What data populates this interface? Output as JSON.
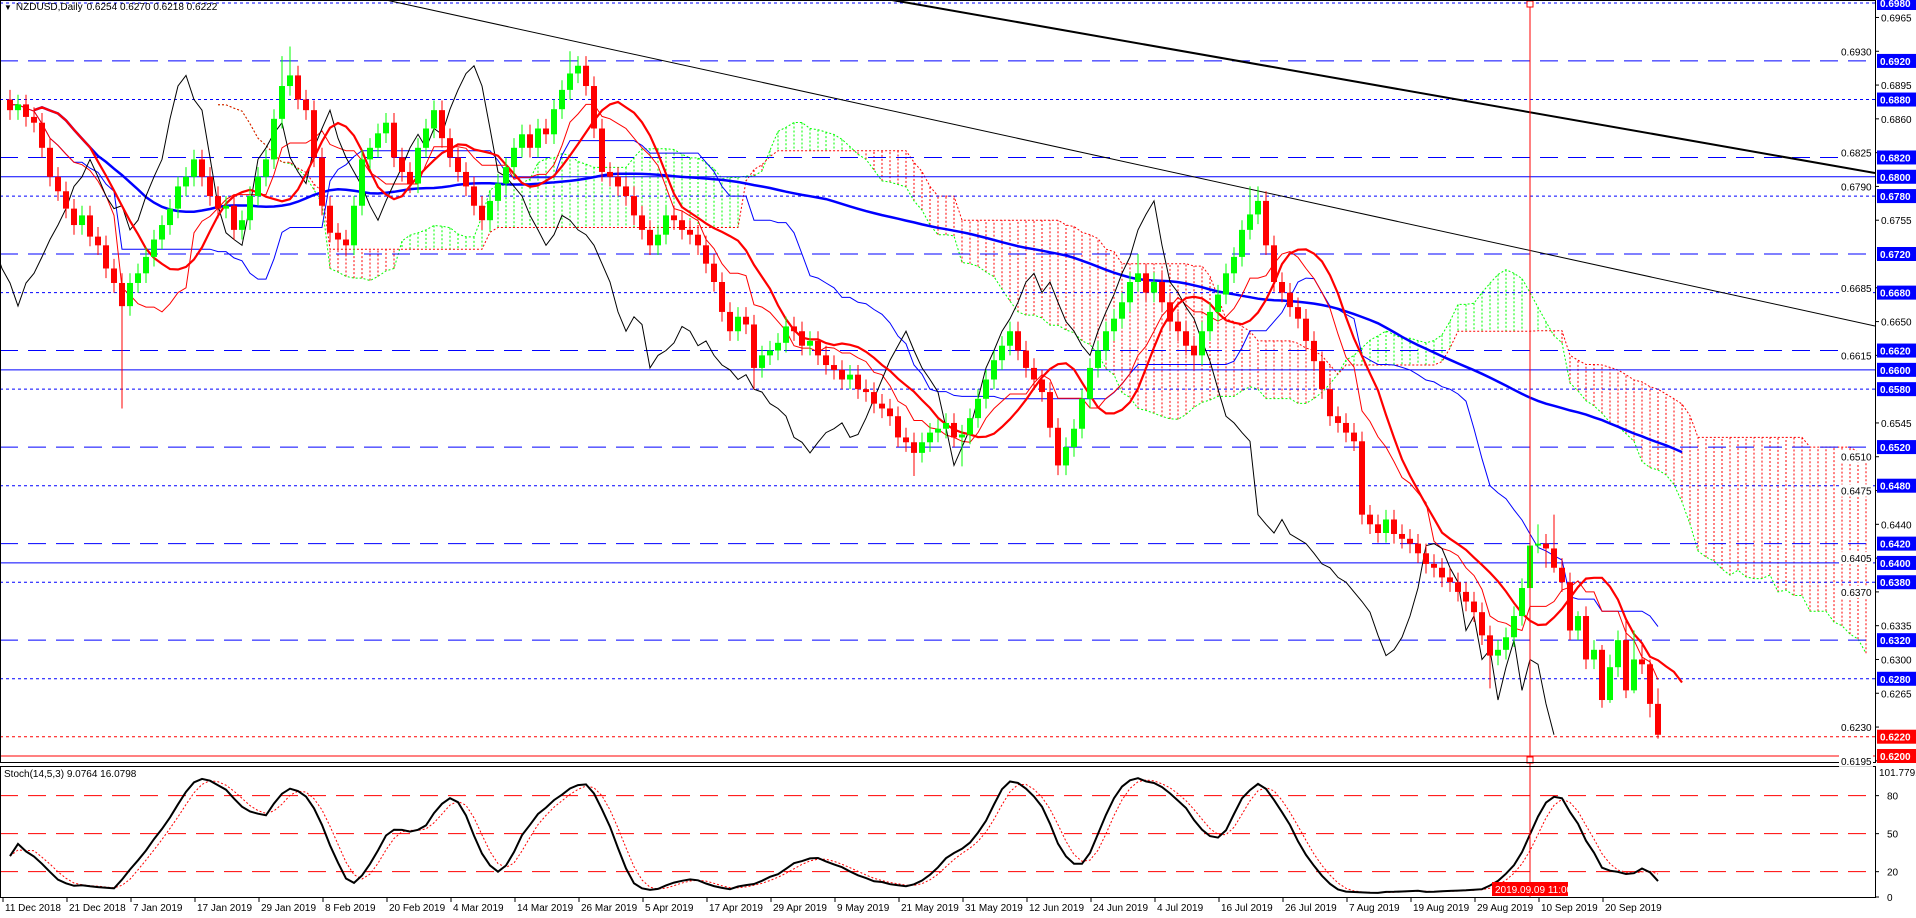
{
  "header": {
    "symbol": "NZDUSD,Daily",
    "ohlc": "0.6254 0.6270 0.6218 0.6222",
    "menu_icon": "triangle-down-icon"
  },
  "stoch_panel": {
    "label": "Stoch(14,5,3) 9.0764 16.0798",
    "max_label": "101.7791",
    "levels": [
      80,
      50,
      20
    ],
    "axis_labels": [
      "80",
      "50",
      "20",
      "0"
    ]
  },
  "crosshair": {
    "label": "2019.09.09 11:00",
    "color": "#ff0000"
  },
  "colors": {
    "bull": "#00ff00",
    "bear": "#ff0000",
    "level": "#0000ff",
    "bid": "#ff0000",
    "cloud_up": "#00ff00",
    "cloud_down": "#ff0000",
    "ma_fast": "#ff0000",
    "ma_slow": "#0000ff",
    "kijun": "#0000ff",
    "tenkan": "#ff0000",
    "chikou": "#000000",
    "trendline": "#000000"
  },
  "price_axis": {
    "ticks": [
      "0.6965",
      "0.6930",
      "0.6895",
      "0.6860",
      "0.6825",
      "0.6790",
      "0.6755",
      "0.6685",
      "0.6650",
      "0.6615",
      "0.6545",
      "0.6510",
      "0.6475",
      "0.6440",
      "0.6405",
      "0.6370",
      "0.6335",
      "0.6300",
      "0.6265",
      "0.6230",
      "0.6195"
    ],
    "levels": [
      {
        "price": "0.6980",
        "style": "dotted",
        "box": "blue"
      },
      {
        "price": "0.6920",
        "style": "dashed",
        "box": "blue"
      },
      {
        "price": "0.6880",
        "style": "dotted",
        "box": "blue"
      },
      {
        "price": "0.6820",
        "style": "dashed",
        "box": "blue"
      },
      {
        "price": "0.6800",
        "style": "solid",
        "box": "blue"
      },
      {
        "price": "0.6780",
        "style": "dotted",
        "box": "blue"
      },
      {
        "price": "0.6720",
        "style": "dashed",
        "box": "blue"
      },
      {
        "price": "0.6680",
        "style": "dotted",
        "box": "blue"
      },
      {
        "price": "0.6620",
        "style": "dashed",
        "box": "blue"
      },
      {
        "price": "0.6600",
        "style": "solid",
        "box": "blue"
      },
      {
        "price": "0.6580",
        "style": "dotted",
        "box": "blue"
      },
      {
        "price": "0.6520",
        "style": "dashed",
        "box": "blue"
      },
      {
        "price": "0.6480",
        "style": "dotted",
        "box": "blue"
      },
      {
        "price": "0.6420",
        "style": "dashed",
        "box": "blue"
      },
      {
        "price": "0.6400",
        "style": "solid",
        "box": "blue"
      },
      {
        "price": "0.6380",
        "style": "dotted",
        "box": "blue"
      },
      {
        "price": "0.6320",
        "style": "dashed",
        "box": "blue"
      },
      {
        "price": "0.6280",
        "style": "dotted",
        "box": "blue"
      },
      {
        "price": "0.6220",
        "style": "dotted",
        "box": "red"
      },
      {
        "price": "0.6200",
        "style": "solid",
        "box": "red"
      }
    ]
  },
  "time_axis": [
    "11 Dec 2018",
    "21 Dec 2018",
    "7 Jan 2019",
    "17 Jan 2019",
    "29 Jan 2019",
    "8 Feb 2019",
    "20 Feb 2019",
    "4 Mar 2019",
    "14 Mar 2019",
    "26 Mar 2019",
    "5 Apr 2019",
    "17 Apr 2019",
    "29 Apr 2019",
    "9 May 2019",
    "21 May 2019",
    "31 May 2019",
    "12 Jun 2019",
    "24 Jun 2019",
    "4 Jul 2019",
    "16 Jul 2019",
    "26 Jul 2019",
    "7 Aug 2019",
    "19 Aug 2019",
    "29 Aug 2019",
    "10 Sep 2019",
    "20 Sep 2019"
  ],
  "chart_data": {
    "type": "candlestick",
    "symbol": "NZDUSD",
    "timeframe": "Daily",
    "ylim": [
      0.6195,
      0.698
    ],
    "candles_ohlc": [
      [
        0.688,
        0.689,
        0.6859,
        0.6869
      ],
      [
        0.6869,
        0.6885,
        0.6859,
        0.6875
      ],
      [
        0.6875,
        0.6885,
        0.6852,
        0.6862
      ],
      [
        0.6862,
        0.6872,
        0.6846,
        0.6856
      ],
      [
        0.6856,
        0.6866,
        0.682,
        0.683
      ],
      [
        0.683,
        0.684,
        0.679,
        0.68
      ],
      [
        0.68,
        0.681,
        0.6775,
        0.6785
      ],
      [
        0.6785,
        0.6795,
        0.6757,
        0.6767
      ],
      [
        0.6767,
        0.6777,
        0.674,
        0.675
      ],
      [
        0.675,
        0.677,
        0.674,
        0.676
      ],
      [
        0.676,
        0.677,
        0.6728,
        0.6738
      ],
      [
        0.6738,
        0.6748,
        0.6719,
        0.6729
      ],
      [
        0.6729,
        0.6739,
        0.6695,
        0.6705
      ],
      [
        0.6705,
        0.6715,
        0.668,
        0.669
      ],
      [
        0.669,
        0.67,
        0.656,
        0.6666
      ],
      [
        0.6666,
        0.67,
        0.6656,
        0.669
      ],
      [
        0.669,
        0.671,
        0.668,
        0.67
      ],
      [
        0.67,
        0.6727,
        0.669,
        0.6717
      ],
      [
        0.6717,
        0.6745,
        0.6707,
        0.6735
      ],
      [
        0.6735,
        0.676,
        0.6725,
        0.675
      ],
      [
        0.675,
        0.6777,
        0.674,
        0.6767
      ],
      [
        0.6767,
        0.68,
        0.6757,
        0.679
      ],
      [
        0.679,
        0.681,
        0.678,
        0.68
      ],
      [
        0.68,
        0.6828,
        0.679,
        0.6818
      ],
      [
        0.6818,
        0.6828,
        0.679,
        0.68
      ],
      [
        0.68,
        0.681,
        0.677,
        0.678
      ],
      [
        0.678,
        0.679,
        0.6757,
        0.6767
      ],
      [
        0.6767,
        0.678,
        0.6757,
        0.677
      ],
      [
        0.677,
        0.678,
        0.6735,
        0.6745
      ],
      [
        0.6745,
        0.6765,
        0.6735,
        0.6755
      ],
      [
        0.6755,
        0.679,
        0.6745,
        0.678
      ],
      [
        0.678,
        0.681,
        0.677,
        0.68
      ],
      [
        0.68,
        0.6828,
        0.679,
        0.6818
      ],
      [
        0.6818,
        0.687,
        0.6808,
        0.686
      ],
      [
        0.686,
        0.6925,
        0.685,
        0.6894
      ],
      [
        0.6894,
        0.6935,
        0.6884,
        0.6905
      ],
      [
        0.6905,
        0.6915,
        0.687,
        0.688
      ],
      [
        0.688,
        0.689,
        0.6859,
        0.6869
      ],
      [
        0.6869,
        0.6879,
        0.681,
        0.682
      ],
      [
        0.682,
        0.683,
        0.676,
        0.677
      ],
      [
        0.677,
        0.678,
        0.6732,
        0.6742
      ],
      [
        0.6742,
        0.6752,
        0.6725,
        0.6735
      ],
      [
        0.6735,
        0.6745,
        0.6719,
        0.6729
      ],
      [
        0.6729,
        0.678,
        0.6719,
        0.677
      ],
      [
        0.677,
        0.6828,
        0.676,
        0.6818
      ],
      [
        0.6818,
        0.684,
        0.6808,
        0.683
      ],
      [
        0.683,
        0.6855,
        0.682,
        0.6845
      ],
      [
        0.6845,
        0.6866,
        0.6835,
        0.6856
      ],
      [
        0.6856,
        0.6866,
        0.681,
        0.682
      ],
      [
        0.682,
        0.683,
        0.6795,
        0.6805
      ],
      [
        0.6805,
        0.6815,
        0.6783,
        0.6793
      ],
      [
        0.6793,
        0.684,
        0.6783,
        0.683
      ],
      [
        0.683,
        0.686,
        0.682,
        0.685
      ],
      [
        0.685,
        0.6879,
        0.684,
        0.6869
      ],
      [
        0.6869,
        0.6879,
        0.683,
        0.684
      ],
      [
        0.684,
        0.685,
        0.681,
        0.682
      ],
      [
        0.682,
        0.683,
        0.6795,
        0.6805
      ],
      [
        0.6805,
        0.6815,
        0.678,
        0.679
      ],
      [
        0.679,
        0.68,
        0.676,
        0.677
      ],
      [
        0.677,
        0.678,
        0.6745,
        0.6755
      ],
      [
        0.6755,
        0.6785,
        0.6745,
        0.6775
      ],
      [
        0.6775,
        0.6803,
        0.6765,
        0.6793
      ],
      [
        0.6793,
        0.682,
        0.6783,
        0.681
      ],
      [
        0.681,
        0.684,
        0.68,
        0.683
      ],
      [
        0.683,
        0.6854,
        0.682,
        0.6844
      ],
      [
        0.6844,
        0.6854,
        0.682,
        0.683
      ],
      [
        0.683,
        0.686,
        0.682,
        0.685
      ],
      [
        0.685,
        0.686,
        0.6834,
        0.6844
      ],
      [
        0.6844,
        0.688,
        0.6834,
        0.687
      ],
      [
        0.687,
        0.69,
        0.686,
        0.689
      ],
      [
        0.689,
        0.693,
        0.688,
        0.6907
      ],
      [
        0.6907,
        0.6925,
        0.6897,
        0.6915
      ],
      [
        0.6915,
        0.6925,
        0.6884,
        0.6894
      ],
      [
        0.6894,
        0.6904,
        0.684,
        0.685
      ],
      [
        0.685,
        0.686,
        0.6795,
        0.6805
      ],
      [
        0.6805,
        0.6815,
        0.679,
        0.68
      ],
      [
        0.68,
        0.681,
        0.678,
        0.679
      ],
      [
        0.679,
        0.68,
        0.677,
        0.678
      ],
      [
        0.678,
        0.679,
        0.675,
        0.676
      ],
      [
        0.676,
        0.677,
        0.6735,
        0.6745
      ],
      [
        0.6745,
        0.6755,
        0.6719,
        0.6729
      ],
      [
        0.6729,
        0.675,
        0.6719,
        0.674
      ],
      [
        0.674,
        0.677,
        0.673,
        0.676
      ],
      [
        0.676,
        0.677,
        0.6745,
        0.6755
      ],
      [
        0.6755,
        0.6765,
        0.6735,
        0.6745
      ],
      [
        0.6745,
        0.6755,
        0.673,
        0.674
      ],
      [
        0.674,
        0.675,
        0.6719,
        0.6729
      ],
      [
        0.6729,
        0.6739,
        0.67,
        0.671
      ],
      [
        0.671,
        0.672,
        0.6681,
        0.6691
      ],
      [
        0.6691,
        0.6701,
        0.665,
        0.666
      ],
      [
        0.666,
        0.667,
        0.663,
        0.664
      ],
      [
        0.664,
        0.6665,
        0.663,
        0.6655
      ],
      [
        0.6655,
        0.6665,
        0.6637,
        0.6647
      ],
      [
        0.6647,
        0.6657,
        0.658,
        0.6602
      ],
      [
        0.6602,
        0.6625,
        0.6592,
        0.6615
      ],
      [
        0.6615,
        0.663,
        0.6605,
        0.662
      ],
      [
        0.662,
        0.6638,
        0.661,
        0.6628
      ],
      [
        0.6628,
        0.6655,
        0.6618,
        0.6645
      ],
      [
        0.6645,
        0.6655,
        0.663,
        0.664
      ],
      [
        0.664,
        0.665,
        0.6615,
        0.6625
      ],
      [
        0.6625,
        0.664,
        0.6615,
        0.663
      ],
      [
        0.663,
        0.664,
        0.6605,
        0.6615
      ],
      [
        0.6615,
        0.6625,
        0.6595,
        0.6605
      ],
      [
        0.6605,
        0.6615,
        0.659,
        0.66
      ],
      [
        0.66,
        0.661,
        0.658,
        0.659
      ],
      [
        0.659,
        0.6605,
        0.658,
        0.6595
      ],
      [
        0.6595,
        0.6605,
        0.657,
        0.658
      ],
      [
        0.658,
        0.659,
        0.6567,
        0.6577
      ],
      [
        0.6577,
        0.6587,
        0.6555,
        0.6565
      ],
      [
        0.6565,
        0.6575,
        0.655,
        0.656
      ],
      [
        0.656,
        0.657,
        0.6542,
        0.6552
      ],
      [
        0.6552,
        0.6562,
        0.652,
        0.653
      ],
      [
        0.653,
        0.654,
        0.6515,
        0.6525
      ],
      [
        0.6525,
        0.6535,
        0.649,
        0.6514
      ],
      [
        0.6514,
        0.6535,
        0.6504,
        0.6525
      ],
      [
        0.6525,
        0.6545,
        0.6515,
        0.6535
      ],
      [
        0.6535,
        0.6549,
        0.6525,
        0.6539
      ],
      [
        0.6539,
        0.6555,
        0.6529,
        0.6545
      ],
      [
        0.6545,
        0.6555,
        0.652,
        0.653
      ],
      [
        0.653,
        0.6543,
        0.65,
        0.6533
      ],
      [
        0.6533,
        0.656,
        0.6523,
        0.655
      ],
      [
        0.655,
        0.658,
        0.654,
        0.657
      ],
      [
        0.657,
        0.66,
        0.656,
        0.659
      ],
      [
        0.659,
        0.662,
        0.658,
        0.661
      ],
      [
        0.661,
        0.6635,
        0.66,
        0.6625
      ],
      [
        0.6625,
        0.665,
        0.6615,
        0.664
      ],
      [
        0.664,
        0.665,
        0.661,
        0.662
      ],
      [
        0.662,
        0.663,
        0.6592,
        0.6602
      ],
      [
        0.6602,
        0.6612,
        0.658,
        0.659
      ],
      [
        0.659,
        0.66,
        0.6567,
        0.6577
      ],
      [
        0.6577,
        0.6587,
        0.653,
        0.654
      ],
      [
        0.654,
        0.655,
        0.6491,
        0.6501
      ],
      [
        0.6501,
        0.653,
        0.6491,
        0.652
      ],
      [
        0.652,
        0.6549,
        0.651,
        0.6539
      ],
      [
        0.6539,
        0.658,
        0.6529,
        0.657
      ],
      [
        0.657,
        0.6612,
        0.656,
        0.6602
      ],
      [
        0.6602,
        0.663,
        0.6592,
        0.662
      ],
      [
        0.662,
        0.665,
        0.661,
        0.664
      ],
      [
        0.664,
        0.6663,
        0.663,
        0.6653
      ],
      [
        0.6653,
        0.668,
        0.6643,
        0.667
      ],
      [
        0.667,
        0.6701,
        0.666,
        0.6691
      ],
      [
        0.6691,
        0.672,
        0.6681,
        0.67
      ],
      [
        0.67,
        0.671,
        0.667,
        0.668
      ],
      [
        0.668,
        0.6701,
        0.667,
        0.6691
      ],
      [
        0.6691,
        0.6701,
        0.666,
        0.667
      ],
      [
        0.667,
        0.668,
        0.664,
        0.665
      ],
      [
        0.665,
        0.666,
        0.663,
        0.664
      ],
      [
        0.664,
        0.665,
        0.6615,
        0.6625
      ],
      [
        0.6625,
        0.6635,
        0.66,
        0.6615
      ],
      [
        0.6615,
        0.665,
        0.6605,
        0.664
      ],
      [
        0.664,
        0.667,
        0.663,
        0.666
      ],
      [
        0.666,
        0.6688,
        0.665,
        0.6678
      ],
      [
        0.6678,
        0.671,
        0.6668,
        0.67
      ],
      [
        0.67,
        0.6727,
        0.669,
        0.6717
      ],
      [
        0.6717,
        0.6755,
        0.6707,
        0.6745
      ],
      [
        0.6745,
        0.679,
        0.6735,
        0.6761
      ],
      [
        0.6761,
        0.679,
        0.6751,
        0.6775
      ],
      [
        0.6775,
        0.6785,
        0.6719,
        0.6729
      ],
      [
        0.6729,
        0.6739,
        0.6681,
        0.6691
      ],
      [
        0.6691,
        0.6701,
        0.667,
        0.668
      ],
      [
        0.668,
        0.669,
        0.6655,
        0.6665
      ],
      [
        0.6665,
        0.6675,
        0.6643,
        0.6653
      ],
      [
        0.6653,
        0.6663,
        0.662,
        0.663
      ],
      [
        0.663,
        0.664,
        0.6599,
        0.6609
      ],
      [
        0.6609,
        0.6619,
        0.657,
        0.658
      ],
      [
        0.658,
        0.659,
        0.6542,
        0.6552
      ],
      [
        0.6552,
        0.6562,
        0.6535,
        0.6545
      ],
      [
        0.6545,
        0.6555,
        0.6525,
        0.6535
      ],
      [
        0.6535,
        0.6545,
        0.6516,
        0.6526
      ],
      [
        0.6526,
        0.6536,
        0.644,
        0.645
      ],
      [
        0.645,
        0.646,
        0.643,
        0.644
      ],
      [
        0.644,
        0.645,
        0.6421,
        0.6431
      ],
      [
        0.6431,
        0.6455,
        0.6421,
        0.6445
      ],
      [
        0.6445,
        0.6455,
        0.642,
        0.643
      ],
      [
        0.643,
        0.644,
        0.6415,
        0.6425
      ],
      [
        0.6425,
        0.6435,
        0.641,
        0.642
      ],
      [
        0.642,
        0.643,
        0.64,
        0.641
      ],
      [
        0.641,
        0.642,
        0.6389,
        0.6399
      ],
      [
        0.6399,
        0.6409,
        0.6385,
        0.6395
      ],
      [
        0.6395,
        0.6405,
        0.6375,
        0.6385
      ],
      [
        0.6385,
        0.6395,
        0.637,
        0.638
      ],
      [
        0.638,
        0.639,
        0.636,
        0.637
      ],
      [
        0.637,
        0.638,
        0.635,
        0.636
      ],
      [
        0.636,
        0.637,
        0.6339,
        0.6349
      ],
      [
        0.6349,
        0.6359,
        0.6315,
        0.6325
      ],
      [
        0.6325,
        0.6335,
        0.627,
        0.6304
      ],
      [
        0.6304,
        0.632,
        0.6294,
        0.631
      ],
      [
        0.631,
        0.6333,
        0.63,
        0.6323
      ],
      [
        0.6323,
        0.6355,
        0.6313,
        0.6345
      ],
      [
        0.6345,
        0.6384,
        0.6335,
        0.6374
      ],
      [
        0.6374,
        0.644,
        0.6364,
        0.6418
      ],
      [
        0.6418,
        0.644,
        0.641,
        0.642
      ],
      [
        0.642,
        0.643,
        0.6395,
        0.6415
      ],
      [
        0.6415,
        0.645,
        0.639,
        0.6395
      ],
      [
        0.6395,
        0.6405,
        0.637,
        0.638
      ],
      [
        0.638,
        0.639,
        0.632,
        0.633
      ],
      [
        0.633,
        0.635,
        0.632,
        0.6345
      ],
      [
        0.6345,
        0.6355,
        0.629,
        0.63
      ],
      [
        0.63,
        0.632,
        0.629,
        0.631
      ],
      [
        0.631,
        0.6315,
        0.625,
        0.6258
      ],
      [
        0.6258,
        0.6305,
        0.6255,
        0.6292
      ],
      [
        0.6292,
        0.633,
        0.6282,
        0.632
      ],
      [
        0.632,
        0.634,
        0.626,
        0.6268
      ],
      [
        0.6268,
        0.633,
        0.6265,
        0.63
      ],
      [
        0.63,
        0.6315,
        0.6285,
        0.6295
      ],
      [
        0.6295,
        0.63,
        0.624,
        0.6254
      ],
      [
        0.6254,
        0.627,
        0.6218,
        0.6222
      ]
    ]
  }
}
